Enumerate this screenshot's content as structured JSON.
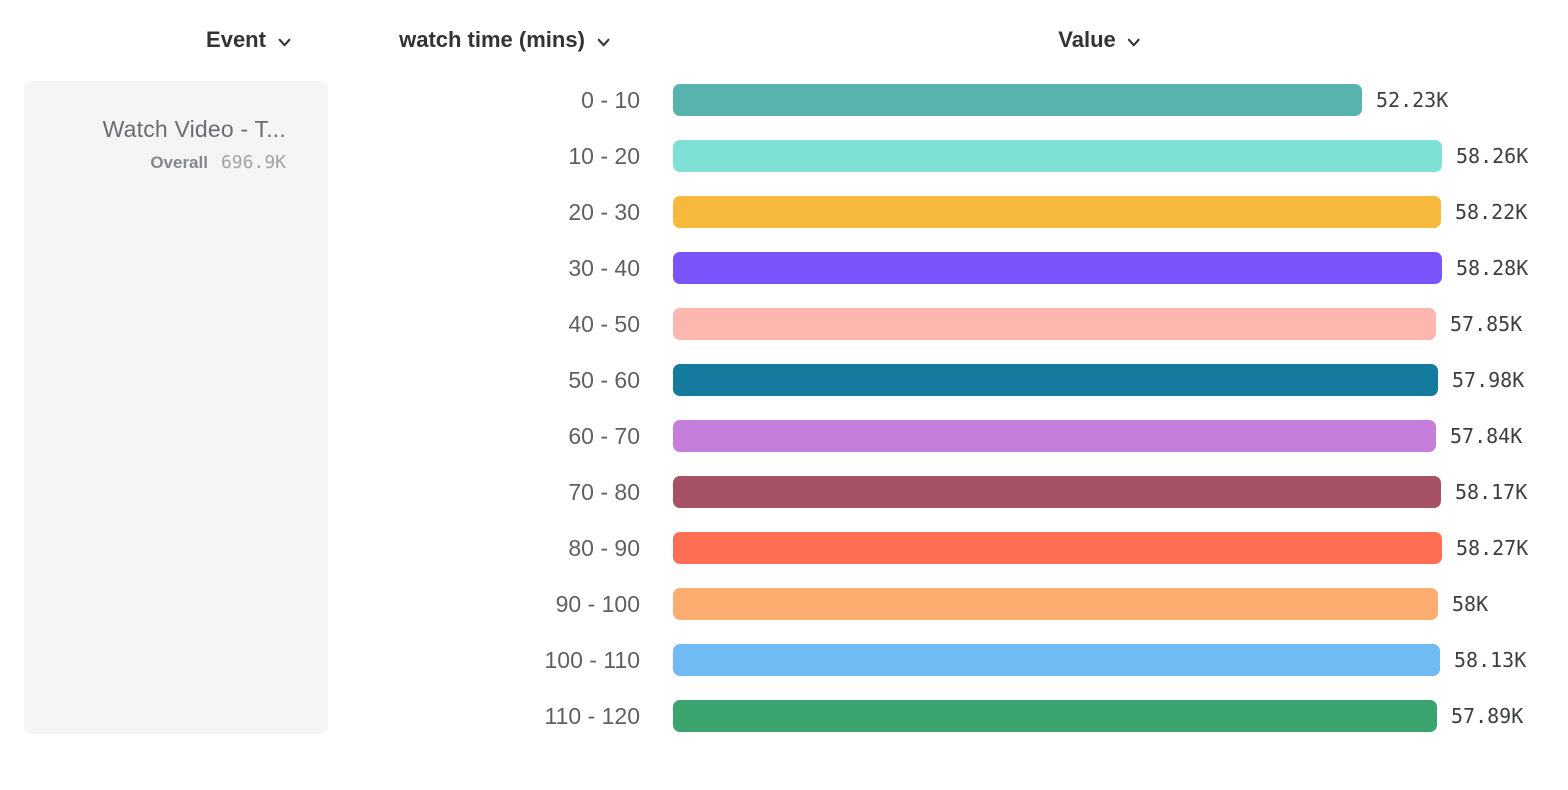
{
  "columns": {
    "event": {
      "label": "Event"
    },
    "breakdown": {
      "label": "watch time (mins)"
    },
    "value": {
      "label": "Value"
    }
  },
  "event_card": {
    "title": "Watch Video - T...",
    "overall_label": "Overall",
    "overall_value": "696.9K"
  },
  "chart_data": {
    "type": "bar",
    "orientation": "horizontal",
    "title": "",
    "xlabel": "Value",
    "ylabel": "watch time (mins)",
    "categories": [
      "0 - 10",
      "10 - 20",
      "20 - 30",
      "30 - 40",
      "40 - 50",
      "50 - 60",
      "60 - 70",
      "70 - 80",
      "80 - 90",
      "90 - 100",
      "100 - 110",
      "110 - 120"
    ],
    "values": [
      52230,
      58260,
      58220,
      58280,
      57850,
      57980,
      57840,
      58170,
      58270,
      58000,
      58130,
      57890
    ],
    "value_labels": [
      "52.23K",
      "58.26K",
      "58.22K",
      "58.28K",
      "57.85K",
      "57.98K",
      "57.84K",
      "58.17K",
      "58.27K",
      "58K",
      "58.13K",
      "57.89K"
    ],
    "bar_colors": [
      "#57b3ab",
      "#7fe1d5",
      "#f6b83d",
      "#7b55fb",
      "#fdb7ae",
      "#147a9e",
      "#c67edb",
      "#a65165",
      "#fd6e52",
      "#fdad70",
      "#70bbf4",
      "#3ca56f"
    ],
    "xlim": [
      0,
      58280
    ],
    "grid": false,
    "legend": "none"
  },
  "colors": {
    "header_text": "#2f3439",
    "category_label": "#5d6165",
    "value_label": "#3a3f44",
    "card_background": "#f5f5f6"
  }
}
